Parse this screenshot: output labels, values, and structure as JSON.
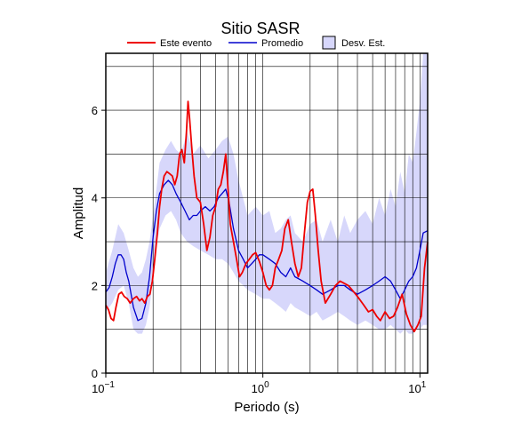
{
  "chart_data": {
    "type": "line",
    "title": "Sitio SASR",
    "xlabel": "Periodo (s)",
    "ylabel": "Amplitud",
    "xscale": "log",
    "xlim": [
      0.1,
      11.2
    ],
    "ylim": [
      0,
      7.3
    ],
    "grid": true,
    "legend_position": "top",
    "x_ticks": [
      {
        "value": 0.1,
        "base": "10",
        "exp": "−1"
      },
      {
        "value": 1,
        "base": "10",
        "exp": "0"
      },
      {
        "value": 10,
        "base": "10",
        "exp": "1"
      }
    ],
    "y_ticks": [
      0,
      2,
      4,
      6
    ],
    "legend": {
      "event": "Este evento",
      "average": "Promedio",
      "std": "Desv. Est."
    },
    "colors": {
      "event": "#ee0000",
      "average": "#0000cc",
      "std_fill": "#d7d7fb",
      "grid": "#000000"
    },
    "series": [
      {
        "key": "event",
        "name": "Este evento",
        "x": [
          0.1,
          0.104,
          0.108,
          0.112,
          0.116,
          0.121,
          0.126,
          0.131,
          0.137,
          0.143,
          0.15,
          0.157,
          0.164,
          0.17,
          0.177,
          0.184,
          0.191,
          0.198,
          0.205,
          0.213,
          0.22,
          0.227,
          0.235,
          0.245,
          0.255,
          0.265,
          0.275,
          0.285,
          0.295,
          0.305,
          0.316,
          0.326,
          0.334,
          0.342,
          0.352,
          0.365,
          0.38,
          0.4,
          0.42,
          0.44,
          0.46,
          0.48,
          0.5,
          0.52,
          0.54,
          0.56,
          0.58,
          0.6,
          0.62,
          0.65,
          0.68,
          0.71,
          0.74,
          0.78,
          0.82,
          0.86,
          0.9,
          0.95,
          1.0,
          1.05,
          1.1,
          1.15,
          1.2,
          1.26,
          1.32,
          1.38,
          1.45,
          1.52,
          1.6,
          1.68,
          1.76,
          1.84,
          1.92,
          2.0,
          2.08,
          2.16,
          2.25,
          2.35,
          2.5,
          2.7,
          2.9,
          3.1,
          3.3,
          3.5,
          3.7,
          3.9,
          4.1,
          4.4,
          4.7,
          5.0,
          5.3,
          5.6,
          6.0,
          6.4,
          6.8,
          7.2,
          7.7,
          8.2,
          8.7,
          9.2,
          9.7,
          10.2,
          10.7,
          11.2
        ],
        "values": [
          1.55,
          1.45,
          1.25,
          1.2,
          1.5,
          1.8,
          1.85,
          1.75,
          1.7,
          1.6,
          1.7,
          1.75,
          1.65,
          1.7,
          1.6,
          1.75,
          1.8,
          2.1,
          2.6,
          3.2,
          3.8,
          4.2,
          4.5,
          4.6,
          4.55,
          4.5,
          4.3,
          4.5,
          5.0,
          5.1,
          4.8,
          5.5,
          6.2,
          5.8,
          5.2,
          4.5,
          4.0,
          3.9,
          3.4,
          2.8,
          3.1,
          3.6,
          3.8,
          4.2,
          4.3,
          4.6,
          5.0,
          4.2,
          3.4,
          3.0,
          2.6,
          2.2,
          2.3,
          2.5,
          2.6,
          2.7,
          2.75,
          2.55,
          2.3,
          2.0,
          1.9,
          2.0,
          2.4,
          2.6,
          2.8,
          3.3,
          3.5,
          3.0,
          2.5,
          2.2,
          2.4,
          3.2,
          3.9,
          4.15,
          4.2,
          3.6,
          2.8,
          2.1,
          1.6,
          1.8,
          2.0,
          2.1,
          2.05,
          2.0,
          1.9,
          1.8,
          1.7,
          1.55,
          1.4,
          1.45,
          1.3,
          1.2,
          1.4,
          1.25,
          1.3,
          1.5,
          1.8,
          1.35,
          1.1,
          0.95,
          1.1,
          1.3,
          2.4,
          3.0
        ]
      },
      {
        "key": "average",
        "name": "Promedio",
        "x": [
          0.1,
          0.105,
          0.11,
          0.115,
          0.12,
          0.125,
          0.13,
          0.135,
          0.14,
          0.15,
          0.16,
          0.17,
          0.18,
          0.19,
          0.2,
          0.21,
          0.22,
          0.235,
          0.25,
          0.265,
          0.28,
          0.3,
          0.32,
          0.34,
          0.36,
          0.38,
          0.4,
          0.43,
          0.46,
          0.49,
          0.52,
          0.55,
          0.58,
          0.61,
          0.65,
          0.7,
          0.75,
          0.8,
          0.85,
          0.9,
          0.95,
          1.0,
          1.1,
          1.2,
          1.3,
          1.4,
          1.5,
          1.6,
          1.8,
          2.0,
          2.2,
          2.4,
          2.7,
          3.0,
          3.3,
          3.6,
          4.0,
          4.5,
          5.0,
          5.5,
          6.0,
          6.5,
          7.0,
          7.5,
          8.0,
          8.5,
          9.0,
          9.5,
          10.0,
          10.5,
          11.2
        ],
        "values": [
          1.85,
          1.95,
          2.2,
          2.5,
          2.7,
          2.7,
          2.6,
          2.3,
          2.1,
          1.5,
          1.2,
          1.25,
          1.6,
          2.2,
          3.1,
          3.7,
          4.1,
          4.3,
          4.4,
          4.3,
          4.1,
          3.9,
          3.7,
          3.5,
          3.6,
          3.6,
          3.7,
          3.8,
          3.7,
          3.8,
          4.0,
          4.1,
          4.2,
          3.9,
          3.3,
          2.8,
          2.6,
          2.4,
          2.5,
          2.6,
          2.7,
          2.7,
          2.6,
          2.5,
          2.3,
          2.2,
          2.4,
          2.2,
          2.1,
          2.0,
          1.9,
          1.8,
          1.9,
          2.0,
          2.0,
          1.9,
          1.8,
          1.9,
          2.0,
          2.1,
          2.2,
          2.1,
          1.9,
          1.7,
          1.9,
          2.1,
          2.2,
          2.4,
          2.8,
          3.2,
          3.25
        ]
      },
      {
        "key": "std",
        "name": "Desv. Est.",
        "x": [
          0.1,
          0.11,
          0.12,
          0.13,
          0.14,
          0.15,
          0.16,
          0.17,
          0.18,
          0.19,
          0.2,
          0.21,
          0.22,
          0.24,
          0.26,
          0.28,
          0.3,
          0.33,
          0.36,
          0.4,
          0.45,
          0.5,
          0.55,
          0.6,
          0.65,
          0.7,
          0.8,
          0.9,
          1.0,
          1.1,
          1.2,
          1.3,
          1.4,
          1.5,
          1.6,
          1.8,
          2.0,
          2.2,
          2.4,
          2.7,
          3.0,
          3.3,
          3.6,
          4.0,
          4.5,
          5.0,
          5.5,
          6.0,
          6.5,
          7.0,
          7.5,
          8.0,
          8.5,
          9.0,
          9.5,
          10.0,
          10.5,
          11.2
        ],
        "upper": [
          2.3,
          2.8,
          3.4,
          3.2,
          2.8,
          2.4,
          2.2,
          2.3,
          2.6,
          3.0,
          3.6,
          4.2,
          4.8,
          5.1,
          5.3,
          5.1,
          5.0,
          5.5,
          5.0,
          5.2,
          4.9,
          5.1,
          5.3,
          5.4,
          5.0,
          4.4,
          3.6,
          3.8,
          3.6,
          3.7,
          3.2,
          3.3,
          3.5,
          3.6,
          3.2,
          3.0,
          3.4,
          3.5,
          3.0,
          3.5,
          3.0,
          3.6,
          3.2,
          3.5,
          3.7,
          3.4,
          4.0,
          3.6,
          4.2,
          3.8,
          4.6,
          4.1,
          5.0,
          4.8,
          5.5,
          6.2,
          7.3,
          7.3
        ],
        "lower": [
          1.4,
          1.6,
          1.9,
          2.0,
          1.6,
          1.0,
          0.9,
          0.9,
          1.1,
          1.5,
          2.2,
          2.9,
          3.3,
          3.6,
          3.7,
          3.5,
          3.2,
          3.0,
          2.9,
          2.8,
          2.7,
          2.6,
          2.6,
          2.5,
          2.3,
          2.1,
          1.9,
          1.8,
          1.7,
          1.7,
          1.6,
          1.5,
          1.4,
          1.6,
          1.5,
          1.4,
          1.3,
          1.4,
          1.2,
          1.3,
          1.4,
          1.3,
          1.2,
          1.1,
          1.2,
          1.1,
          1.0,
          1.0,
          1.1,
          1.0,
          0.9,
          1.0,
          0.9,
          0.9,
          1.0,
          1.0,
          1.1,
          1.1
        ]
      }
    ]
  }
}
